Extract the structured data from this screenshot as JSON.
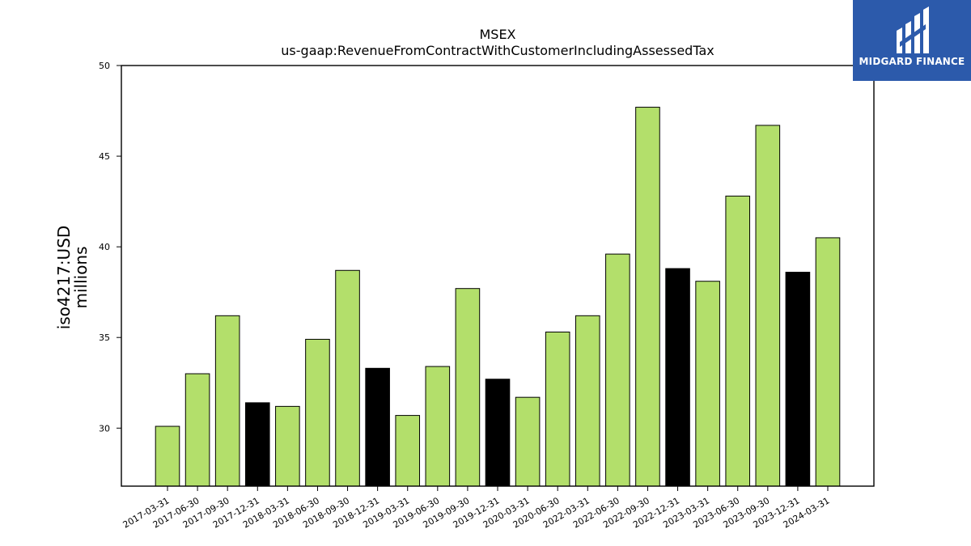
{
  "brand": {
    "name": "MIDGARD FINANCE",
    "logo_icon": "midgard-logo-icon",
    "background": "#2c5aab"
  },
  "colors": {
    "normal_bar": "#b3df6b",
    "q4_bar": "#000000",
    "bar_edge": "#000000"
  },
  "chart_data": {
    "type": "bar",
    "title": "MSEX",
    "subtitle": "us-gaap:RevenueFromContractWithCustomerIncludingAssessedTax",
    "ylabel": "iso4217:USD",
    "ylabel2": "millions",
    "xlabel": "",
    "ylim": [
      26.8,
      50
    ],
    "yticks": [
      30,
      35,
      40,
      45,
      50
    ],
    "grid": false,
    "categories": [
      "2017-03-31",
      "2017-06-30",
      "2017-09-30",
      "2017-12-31",
      "2018-03-31",
      "2018-06-30",
      "2018-09-30",
      "2018-12-31",
      "2019-03-31",
      "2019-06-30",
      "2019-09-30",
      "2019-12-31",
      "2020-03-31",
      "2020-06-30",
      "2022-03-31",
      "2022-06-30",
      "2022-09-30",
      "2022-12-31",
      "2023-03-31",
      "2023-06-30",
      "2023-09-30",
      "2023-12-31",
      "2024-03-31"
    ],
    "values": [
      30.1,
      33.0,
      36.2,
      31.4,
      31.2,
      34.9,
      38.7,
      33.3,
      30.7,
      33.4,
      37.7,
      32.7,
      31.7,
      35.3,
      36.2,
      39.6,
      47.7,
      38.8,
      38.1,
      42.8,
      46.7,
      38.6,
      40.5
    ],
    "highlight": [
      false,
      false,
      false,
      true,
      false,
      false,
      false,
      true,
      false,
      false,
      false,
      true,
      false,
      false,
      false,
      false,
      false,
      true,
      false,
      false,
      false,
      true,
      false
    ]
  }
}
